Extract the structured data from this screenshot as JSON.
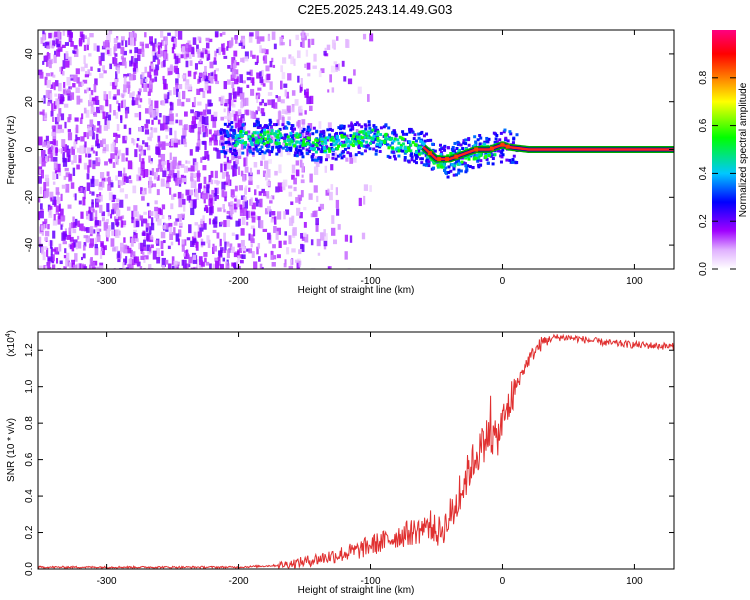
{
  "title": "C2E5.2025.243.14.49.G03",
  "colors": {
    "line": "#e03030",
    "axis": "#000000",
    "spectrum_low": "#cc88ff",
    "spectrum_mid": "#7a22ee",
    "spectrum_high": "#ff2020"
  },
  "chart_data": [
    {
      "type": "heatmap",
      "title": "",
      "xlabel": "Height of straight line (km)",
      "ylabel": "Frequency (Hz)",
      "xlim": [
        -352,
        130
      ],
      "ylim": [
        -50,
        50
      ],
      "x_ticks": [
        -300,
        -200,
        -100,
        0,
        100
      ],
      "y_ticks": [
        -40,
        -20,
        0,
        20,
        40
      ],
      "colorbar": {
        "label": "Normalized spectral amplitude",
        "range": [
          0,
          1
        ],
        "ticks": [
          "0.0",
          "0.2",
          "0.4",
          "0.6",
          "0.8"
        ],
        "tick_values": [
          0.0,
          0.2,
          0.4,
          0.6,
          0.8
        ],
        "colormap": [
          "#ffffff",
          "#a000ff",
          "#0000ff",
          "#00c8ff",
          "#00ff00",
          "#ffff00",
          "#ff8000",
          "#ff0000",
          "#ff0080"
        ]
      },
      "ridge": {
        "description_points_x": [
          -210,
          -180,
          -160,
          -140,
          -120,
          -100,
          -80,
          -60,
          -50,
          -40,
          -30,
          -20,
          -10,
          -5,
          0,
          5,
          20,
          60,
          130
        ],
        "description_points_y": [
          5,
          6,
          5,
          2,
          4,
          6,
          3,
          1,
          -4,
          -4,
          -2,
          0,
          0,
          1,
          2,
          1,
          0,
          0,
          0
        ]
      }
    },
    {
      "type": "line",
      "title": "",
      "xlabel": "Height of straight line (km)",
      "ylabel": "SNR (10 * v/v)",
      "y_multiplier": "(x10",
      "y_multiplier_exp": "4",
      "y_multiplier_close": ")",
      "xlim": [
        -352,
        130
      ],
      "ylim": [
        0,
        1.3
      ],
      "x_ticks": [
        -300,
        -200,
        -100,
        0,
        100
      ],
      "y_ticks": [
        "0.0",
        "0.2",
        "0.4",
        "0.6",
        "0.8",
        "1.0",
        "1.2"
      ],
      "y_tick_values": [
        0.0,
        0.2,
        0.4,
        0.6,
        0.8,
        1.0,
        1.2
      ],
      "series": [
        {
          "x": [
            -352,
            -300,
            -250,
            -200,
            -170,
            -150,
            -130,
            -110,
            -100,
            -90,
            -80,
            -70,
            -60,
            -55,
            -50,
            -45,
            -40,
            -35,
            -30,
            -25,
            -20,
            -15,
            -10,
            -5,
            0,
            5,
            10,
            15,
            20,
            25,
            30,
            35,
            40,
            50,
            60,
            80,
            100,
            130
          ],
          "y": [
            0.01,
            0.01,
            0.01,
            0.01,
            0.02,
            0.04,
            0.07,
            0.1,
            0.13,
            0.15,
            0.18,
            0.2,
            0.22,
            0.25,
            0.2,
            0.22,
            0.28,
            0.35,
            0.45,
            0.55,
            0.62,
            0.68,
            0.75,
            0.7,
            0.8,
            0.9,
            1.0,
            1.08,
            1.15,
            1.2,
            1.24,
            1.26,
            1.27,
            1.27,
            1.26,
            1.24,
            1.23,
            1.22
          ]
        }
      ]
    }
  ]
}
